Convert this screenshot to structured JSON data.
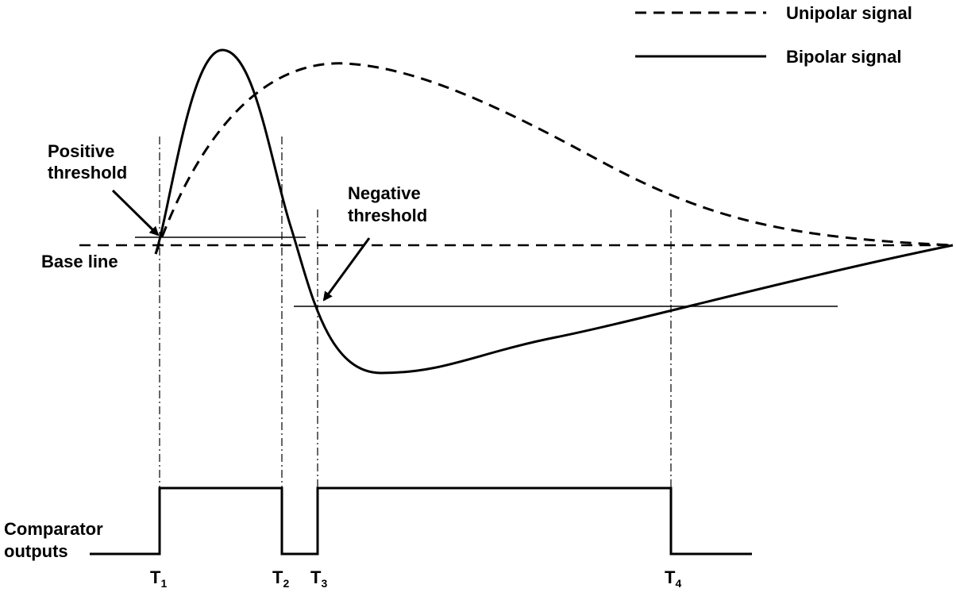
{
  "legend": {
    "unipolar": "Unipolar signal",
    "bipolar": "Bipolar signal"
  },
  "labels": {
    "positive_threshold_line1": "Positive",
    "positive_threshold_line2": "threshold",
    "negative_threshold_line1": "Negative",
    "negative_threshold_line2": "threshold",
    "base_line": "Base line",
    "comparator_line1": "Comparator",
    "comparator_line2": "outputs"
  },
  "times": [
    {
      "main": "T",
      "sub": "1"
    },
    {
      "main": "T",
      "sub": "2"
    },
    {
      "main": "T",
      "sub": "3"
    },
    {
      "main": "T",
      "sub": "4"
    }
  ]
}
